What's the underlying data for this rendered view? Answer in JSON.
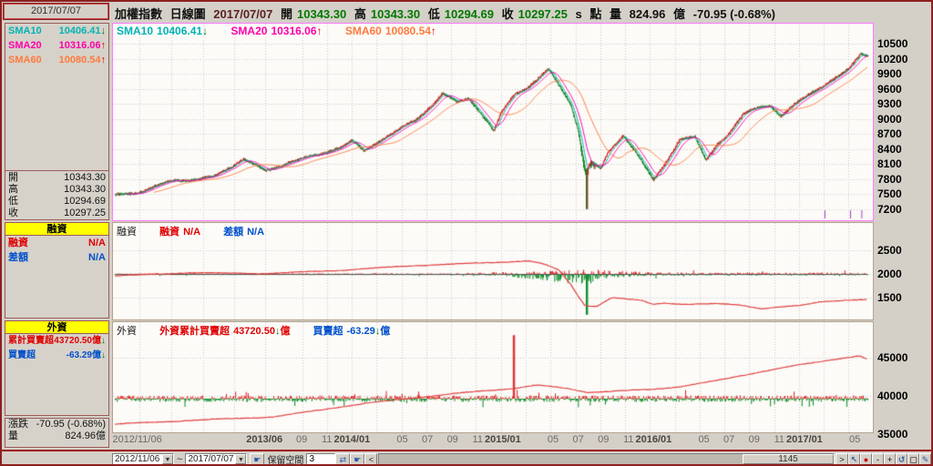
{
  "header": {
    "date_box": "2017/07/07",
    "index_name": "加權指數",
    "chart_type": "日線圖",
    "date": "2017/07/07",
    "fields": [
      {
        "label": "開",
        "value": "10343.30"
      },
      {
        "label": "高",
        "value": "10343.30"
      },
      {
        "label": "低",
        "value": "10294.69"
      },
      {
        "label": "收",
        "value": "10297.25"
      }
    ],
    "s_flag": "s",
    "point_label": "點",
    "vol_label": "量",
    "volume": "824.96",
    "vol_unit": "億",
    "change": "-70.95 (-0.68%)"
  },
  "sidebar": {
    "sma": [
      {
        "label": "SMA10",
        "value": "10406.41",
        "arrow": "↓"
      },
      {
        "label": "SMA20",
        "value": "10316.06",
        "arrow": "↑"
      },
      {
        "label": "SMA60",
        "value": "10080.54",
        "arrow": "↑"
      }
    ],
    "ohlc": [
      {
        "label": "開",
        "value": "10343.30"
      },
      {
        "label": "高",
        "value": "10343.30"
      },
      {
        "label": "低",
        "value": "10294.69"
      },
      {
        "label": "收",
        "value": "10297.25"
      }
    ],
    "margin_box": {
      "title": "融資",
      "rows": [
        {
          "label": "融資",
          "value": "N/A"
        },
        {
          "label": "差額",
          "value": "N/A"
        }
      ]
    },
    "foreign_box": {
      "title": "外資",
      "rows": [
        {
          "label": "累計買賣超",
          "value": "43720.50億",
          "arrow": "↓"
        },
        {
          "label": "買賣超",
          "value": "-63.29億",
          "arrow": "↓"
        }
      ]
    },
    "summary": {
      "rows": [
        {
          "label": "漲跌",
          "value": "-70.95 (-0.68%)"
        },
        {
          "label": "量",
          "value": "824.96億"
        }
      ]
    }
  },
  "statusbar": {
    "date_from": "2012/11/06",
    "tilde": "~",
    "date_to": "2017/07/07",
    "hand_glyph": "☛",
    "reserve_label": "保留空間",
    "reserve_value": "3",
    "spin_glyph": "⇄",
    "dropdown_glyph": "▼",
    "scroll_left": "<",
    "scroll_right": ">",
    "bar_count": "1145",
    "tools": [
      {
        "name": "cursor",
        "glyph": "↖"
      },
      {
        "name": "time",
        "glyph": "●"
      },
      {
        "name": "zoom-out",
        "glyph": "-"
      },
      {
        "name": "zoom-in",
        "glyph": "+"
      },
      {
        "name": "undo",
        "glyph": "↺"
      },
      {
        "name": "window",
        "glyph": "▢"
      },
      {
        "name": "draw",
        "glyph": "✎"
      }
    ]
  },
  "chart_data": [
    {
      "type": "candlestick",
      "title": "加權指數 日線圖",
      "bars": 1145,
      "ylim": [
        6980,
        10900
      ],
      "yticks": [
        10500,
        10200,
        9900,
        9600,
        9300,
        9000,
        8700,
        8400,
        8100,
        7800,
        7500,
        7200
      ],
      "colors": {
        "up": "#cc1111",
        "down": "#007a14",
        "sma10": "#00b4b4",
        "sma20": "#ff00aa",
        "sma60": "#ff7a3c"
      },
      "legend": [
        {
          "label": "SMA10",
          "value": "10406.41",
          "arrow": "↓"
        },
        {
          "label": "SMA20",
          "value": "10316.06",
          "arrow": "↑"
        },
        {
          "label": "SMA60",
          "value": "10080.54",
          "arrow": "↑"
        }
      ],
      "xticks": [
        {
          "label": "2012/11/06",
          "f": 0.033,
          "bold": false
        },
        {
          "label": "2013/06",
          "f": 0.2,
          "bold": true
        },
        {
          "label": "09",
          "f": 0.249,
          "bold": false
        },
        {
          "label": "11",
          "f": 0.282,
          "bold": false
        },
        {
          "label": "2014/01",
          "f": 0.315,
          "bold": true
        },
        {
          "label": "05",
          "f": 0.381,
          "bold": false
        },
        {
          "label": "07",
          "f": 0.414,
          "bold": false
        },
        {
          "label": "09",
          "f": 0.447,
          "bold": false
        },
        {
          "label": "11",
          "f": 0.48,
          "bold": false
        },
        {
          "label": "2015/01",
          "f": 0.513,
          "bold": true
        },
        {
          "label": "05",
          "f": 0.579,
          "bold": false
        },
        {
          "label": "07",
          "f": 0.612,
          "bold": false
        },
        {
          "label": "09",
          "f": 0.645,
          "bold": false
        },
        {
          "label": "11",
          "f": 0.678,
          "bold": false
        },
        {
          "label": "2016/01",
          "f": 0.711,
          "bold": true
        },
        {
          "label": "05",
          "f": 0.777,
          "bold": false
        },
        {
          "label": "07",
          "f": 0.81,
          "bold": false
        },
        {
          "label": "09",
          "f": 0.843,
          "bold": false
        },
        {
          "label": "11",
          "f": 0.876,
          "bold": false
        },
        {
          "label": "2017/01",
          "f": 0.909,
          "bold": true
        },
        {
          "label": "05",
          "f": 0.975,
          "bold": false
        }
      ],
      "xgrid_extra": [
        0.075,
        0.117,
        0.159,
        0.348,
        0.546,
        0.744,
        0.942
      ],
      "close_anchors": [
        [
          0,
          7450
        ],
        [
          0.03,
          7500
        ],
        [
          0.08,
          7750
        ],
        [
          0.13,
          7850
        ],
        [
          0.17,
          8250
        ],
        [
          0.2,
          7980
        ],
        [
          0.23,
          8150
        ],
        [
          0.27,
          8250
        ],
        [
          0.3,
          8420
        ],
        [
          0.315,
          8520
        ],
        [
          0.33,
          8320
        ],
        [
          0.36,
          8650
        ],
        [
          0.4,
          9000
        ],
        [
          0.435,
          9550
        ],
        [
          0.455,
          9350
        ],
        [
          0.47,
          9440
        ],
        [
          0.495,
          8950
        ],
        [
          0.503,
          8750
        ],
        [
          0.513,
          9100
        ],
        [
          0.53,
          9450
        ],
        [
          0.545,
          9580
        ],
        [
          0.56,
          9750
        ],
        [
          0.575,
          9950
        ],
        [
          0.59,
          9620
        ],
        [
          0.605,
          9280
        ],
        [
          0.615,
          8780
        ],
        [
          0.625,
          7950
        ],
        [
          0.632,
          8150
        ],
        [
          0.645,
          8000
        ],
        [
          0.655,
          8350
        ],
        [
          0.675,
          8720
        ],
        [
          0.69,
          8420
        ],
        [
          0.705,
          8050
        ],
        [
          0.715,
          7800
        ],
        [
          0.73,
          8120
        ],
        [
          0.75,
          8620
        ],
        [
          0.77,
          8620
        ],
        [
          0.785,
          8150
        ],
        [
          0.8,
          8480
        ],
        [
          0.815,
          8680
        ],
        [
          0.835,
          9050
        ],
        [
          0.855,
          9200
        ],
        [
          0.87,
          9260
        ],
        [
          0.885,
          9050
        ],
        [
          0.9,
          9250
        ],
        [
          0.925,
          9560
        ],
        [
          0.945,
          9750
        ],
        [
          0.96,
          9870
        ],
        [
          0.975,
          10020
        ],
        [
          0.99,
          10330
        ],
        [
          1,
          10297
        ]
      ],
      "crash": {
        "f": 0.627,
        "low": 7203
      }
    },
    {
      "type": "line+bar",
      "legend_title": "融資",
      "series": [
        {
          "name": "融資",
          "value": "N/A"
        },
        {
          "name": "差額",
          "value": "N/A"
        }
      ],
      "ylim": [
        1040,
        3080
      ],
      "yticks": [
        2500,
        2000,
        1500
      ],
      "bar_baseline": 2000,
      "line_color": "#e04040",
      "line_anchors": [
        [
          0,
          1960
        ],
        [
          0.1,
          2030
        ],
        [
          0.2,
          2010
        ],
        [
          0.3,
          2080
        ],
        [
          0.4,
          2180
        ],
        [
          0.48,
          2230
        ],
        [
          0.55,
          2280
        ],
        [
          0.57,
          2210
        ],
        [
          0.59,
          2080
        ],
        [
          0.605,
          1800
        ],
        [
          0.615,
          1550
        ],
        [
          0.625,
          1330
        ],
        [
          0.64,
          1320
        ],
        [
          0.66,
          1500
        ],
        [
          0.68,
          1470
        ],
        [
          0.7,
          1440
        ],
        [
          0.715,
          1360
        ],
        [
          0.73,
          1390
        ],
        [
          0.76,
          1360
        ],
        [
          0.8,
          1370
        ],
        [
          0.83,
          1350
        ],
        [
          0.86,
          1270
        ],
        [
          0.88,
          1300
        ],
        [
          0.91,
          1330
        ],
        [
          0.94,
          1420
        ],
        [
          0.97,
          1450
        ],
        [
          1,
          1460
        ]
      ],
      "vol_anchors": [
        [
          0,
          16
        ],
        [
          0.45,
          18
        ],
        [
          0.52,
          45
        ],
        [
          0.56,
          90
        ],
        [
          0.6,
          140
        ],
        [
          0.627,
          160
        ],
        [
          0.65,
          90
        ],
        [
          0.7,
          50
        ],
        [
          0.75,
          35
        ],
        [
          1,
          30
        ]
      ],
      "spikes": [
        {
          "f": 0.627,
          "v": -860
        }
      ]
    },
    {
      "type": "line+bar",
      "legend_title": "外資",
      "series": [
        {
          "name": "外資累計買賣超",
          "value": "43720.50",
          "arrow": "↓",
          "unit": "億"
        },
        {
          "name": "買賣超",
          "value": "-63.29",
          "arrow": "↓",
          "unit": "億"
        }
      ],
      "ylim": [
        35240,
        49640
      ],
      "yticks": [
        45000,
        40000,
        35000
      ],
      "bar_baseline": 39640,
      "line_color": "#e04040",
      "line_anchors": [
        [
          0,
          36300
        ],
        [
          0.1,
          36800
        ],
        [
          0.21,
          37250
        ],
        [
          0.33,
          39000
        ],
        [
          0.45,
          40300
        ],
        [
          0.53,
          41000
        ],
        [
          0.56,
          41400
        ],
        [
          0.6,
          41000
        ],
        [
          0.63,
          40470
        ],
        [
          0.66,
          40600
        ],
        [
          0.71,
          40830
        ],
        [
          0.75,
          41200
        ],
        [
          0.8,
          42000
        ],
        [
          0.86,
          43200
        ],
        [
          0.91,
          44050
        ],
        [
          0.95,
          44700
        ],
        [
          0.97,
          45000
        ],
        [
          0.99,
          45240
        ],
        [
          1,
          44760
        ]
      ],
      "vol_anchors": [
        [
          0,
          420
        ],
        [
          1,
          420
        ]
      ],
      "spikes": [
        {
          "f": 0.53,
          "v": 8300
        }
      ]
    }
  ]
}
